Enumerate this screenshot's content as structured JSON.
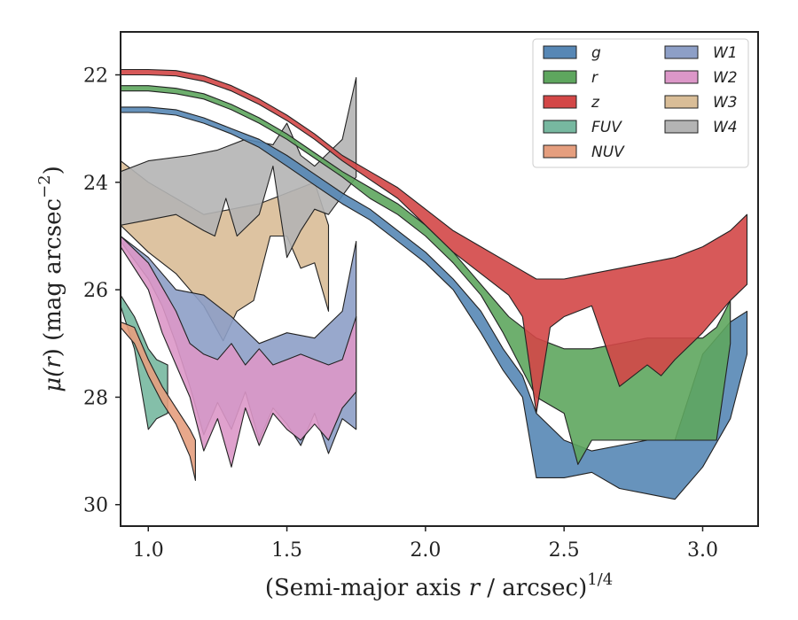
{
  "chart_data": {
    "type": "area",
    "xlabel_main": "(Semi-major axis ",
    "xlabel_var": "r",
    "xlabel_rest": " / arcsec)",
    "xlabel_sup": "1/4",
    "ylabel_pre": "μ(",
    "ylabel_var": "r",
    "ylabel_post": ") (mag arcsec",
    "ylabel_sup": "−2",
    "ylabel_close": ")",
    "xlim": [
      0.9,
      3.2
    ],
    "ylim": [
      30.4,
      21.2
    ],
    "y_inverted": true,
    "xticks": [
      {
        "v": 1.0,
        "label": "1.0"
      },
      {
        "v": 1.5,
        "label": "1.5"
      },
      {
        "v": 2.0,
        "label": "2.0"
      },
      {
        "v": 2.5,
        "label": "2.5"
      },
      {
        "v": 3.0,
        "label": "3.0"
      }
    ],
    "yticks": [
      {
        "v": 22,
        "label": "22"
      },
      {
        "v": 24,
        "label": "24"
      },
      {
        "v": 26,
        "label": "26"
      },
      {
        "v": 28,
        "label": "28"
      },
      {
        "v": 30,
        "label": "30"
      }
    ],
    "legend_position": "top-right",
    "legend_columns": 2,
    "series": [
      {
        "name": "W3",
        "color": "#d9bd97",
        "upper": [
          [
            0.9,
            23.6
          ],
          [
            1.0,
            24.0
          ],
          [
            1.1,
            24.3
          ],
          [
            1.2,
            24.6
          ],
          [
            1.3,
            24.5
          ],
          [
            1.4,
            24.4
          ],
          [
            1.5,
            24.2
          ],
          [
            1.6,
            24.0
          ],
          [
            1.65,
            24.8
          ]
        ],
        "lower": [
          [
            0.9,
            24.8
          ],
          [
            1.0,
            25.3
          ],
          [
            1.1,
            25.7
          ],
          [
            1.2,
            26.3
          ],
          [
            1.27,
            26.95
          ],
          [
            1.32,
            26.4
          ],
          [
            1.38,
            26.2
          ],
          [
            1.44,
            25.0
          ],
          [
            1.5,
            25.0
          ],
          [
            1.55,
            25.6
          ],
          [
            1.6,
            25.5
          ],
          [
            1.65,
            26.4
          ]
        ]
      },
      {
        "name": "W4",
        "color": "#b4b4b4",
        "upper": [
          [
            0.9,
            23.8
          ],
          [
            1.0,
            23.6
          ],
          [
            1.15,
            23.5
          ],
          [
            1.25,
            23.4
          ],
          [
            1.35,
            23.2
          ],
          [
            1.45,
            23.3
          ],
          [
            1.5,
            22.9
          ],
          [
            1.55,
            23.5
          ],
          [
            1.6,
            23.7
          ],
          [
            1.7,
            23.2
          ],
          [
            1.75,
            22.05
          ]
        ],
        "lower": [
          [
            0.9,
            24.8
          ],
          [
            1.0,
            24.7
          ],
          [
            1.1,
            24.6
          ],
          [
            1.2,
            24.9
          ],
          [
            1.24,
            25.0
          ],
          [
            1.28,
            24.3
          ],
          [
            1.32,
            25.0
          ],
          [
            1.4,
            24.6
          ],
          [
            1.45,
            23.7
          ],
          [
            1.5,
            25.4
          ],
          [
            1.55,
            24.9
          ],
          [
            1.6,
            24.5
          ],
          [
            1.65,
            24.6
          ],
          [
            1.75,
            23.9
          ]
        ]
      },
      {
        "name": "W1",
        "color": "#8d9fc7",
        "upper": [
          [
            0.9,
            25.0
          ],
          [
            1.0,
            25.4
          ],
          [
            1.1,
            26.0
          ],
          [
            1.2,
            26.1
          ],
          [
            1.3,
            26.5
          ],
          [
            1.4,
            27.0
          ],
          [
            1.5,
            26.8
          ],
          [
            1.6,
            26.9
          ],
          [
            1.7,
            26.4
          ],
          [
            1.75,
            25.1
          ]
        ],
        "lower": [
          [
            0.9,
            25.1
          ],
          [
            1.0,
            25.8
          ],
          [
            1.05,
            26.3
          ],
          [
            1.1,
            27.0
          ],
          [
            1.15,
            27.8
          ],
          [
            1.2,
            28.7
          ],
          [
            1.25,
            28.1
          ],
          [
            1.3,
            28.6
          ],
          [
            1.35,
            27.9
          ],
          [
            1.4,
            28.8
          ],
          [
            1.45,
            28.2
          ],
          [
            1.5,
            28.5
          ],
          [
            1.55,
            28.9
          ],
          [
            1.6,
            28.3
          ],
          [
            1.65,
            29.05
          ],
          [
            1.7,
            28.4
          ],
          [
            1.75,
            28.6
          ]
        ]
      },
      {
        "name": "W2",
        "color": "#dc97c8",
        "upper": [
          [
            0.9,
            25.0
          ],
          [
            1.0,
            25.5
          ],
          [
            1.1,
            26.4
          ],
          [
            1.15,
            27.0
          ],
          [
            1.2,
            27.2
          ],
          [
            1.25,
            27.3
          ],
          [
            1.3,
            27.0
          ],
          [
            1.35,
            27.4
          ],
          [
            1.4,
            27.1
          ],
          [
            1.45,
            27.4
          ],
          [
            1.5,
            27.3
          ],
          [
            1.55,
            27.2
          ],
          [
            1.6,
            27.3
          ],
          [
            1.65,
            27.4
          ],
          [
            1.7,
            27.3
          ],
          [
            1.75,
            26.5
          ]
        ],
        "lower": [
          [
            0.9,
            25.2
          ],
          [
            1.0,
            26.0
          ],
          [
            1.05,
            26.8
          ],
          [
            1.1,
            27.4
          ],
          [
            1.15,
            28.0
          ],
          [
            1.2,
            29.0
          ],
          [
            1.25,
            28.4
          ],
          [
            1.3,
            29.3
          ],
          [
            1.35,
            28.2
          ],
          [
            1.4,
            28.9
          ],
          [
            1.45,
            28.3
          ],
          [
            1.5,
            28.6
          ],
          [
            1.55,
            28.8
          ],
          [
            1.6,
            28.5
          ],
          [
            1.65,
            28.8
          ],
          [
            1.7,
            28.2
          ],
          [
            1.75,
            27.9
          ]
        ]
      },
      {
        "name": "FUV",
        "color": "#77b8a0",
        "upper": [
          [
            0.9,
            26.1
          ],
          [
            0.95,
            26.5
          ],
          [
            1.0,
            27.1
          ],
          [
            1.03,
            27.3
          ],
          [
            1.07,
            27.4
          ]
        ],
        "lower": [
          [
            0.9,
            26.3
          ],
          [
            0.95,
            27.1
          ],
          [
            1.0,
            28.6
          ],
          [
            1.03,
            28.4
          ],
          [
            1.07,
            28.3
          ]
        ]
      },
      {
        "name": "NUV",
        "color": "#e59e7e",
        "upper": [
          [
            0.9,
            26.6
          ],
          [
            0.95,
            26.7
          ],
          [
            1.0,
            27.3
          ],
          [
            1.05,
            27.8
          ],
          [
            1.1,
            28.2
          ],
          [
            1.15,
            28.6
          ],
          [
            1.17,
            28.8
          ]
        ],
        "lower": [
          [
            0.9,
            26.7
          ],
          [
            0.95,
            27.0
          ],
          [
            1.0,
            27.6
          ],
          [
            1.05,
            28.1
          ],
          [
            1.1,
            28.5
          ],
          [
            1.15,
            29.1
          ],
          [
            1.17,
            29.55
          ]
        ]
      },
      {
        "name": "g",
        "color": "#5787b5",
        "upper": [
          [
            0.9,
            22.6
          ],
          [
            1.0,
            22.6
          ],
          [
            1.1,
            22.65
          ],
          [
            1.2,
            22.8
          ],
          [
            1.3,
            23.0
          ],
          [
            1.4,
            23.2
          ],
          [
            1.5,
            23.5
          ],
          [
            1.6,
            23.85
          ],
          [
            1.7,
            24.2
          ],
          [
            1.8,
            24.5
          ],
          [
            1.9,
            24.9
          ],
          [
            2.0,
            25.3
          ],
          [
            2.1,
            25.8
          ],
          [
            2.2,
            26.4
          ],
          [
            2.28,
            27.1
          ],
          [
            2.35,
            27.6
          ],
          [
            2.4,
            28.3
          ],
          [
            2.5,
            28.8
          ],
          [
            2.6,
            29.0
          ],
          [
            2.7,
            28.9
          ],
          [
            2.8,
            28.8
          ],
          [
            2.9,
            28.8
          ],
          [
            3.0,
            27.2
          ],
          [
            3.1,
            26.6
          ],
          [
            3.16,
            26.4
          ]
        ],
        "lower": [
          [
            0.9,
            22.7
          ],
          [
            1.0,
            22.7
          ],
          [
            1.1,
            22.75
          ],
          [
            1.2,
            22.9
          ],
          [
            1.3,
            23.1
          ],
          [
            1.4,
            23.35
          ],
          [
            1.5,
            23.7
          ],
          [
            1.6,
            24.05
          ],
          [
            1.7,
            24.4
          ],
          [
            1.8,
            24.7
          ],
          [
            1.9,
            25.1
          ],
          [
            2.0,
            25.5
          ],
          [
            2.1,
            26.0
          ],
          [
            2.2,
            26.8
          ],
          [
            2.28,
            27.5
          ],
          [
            2.35,
            28.0
          ],
          [
            2.4,
            29.5
          ],
          [
            2.5,
            29.5
          ],
          [
            2.6,
            29.4
          ],
          [
            2.7,
            29.7
          ],
          [
            2.8,
            29.8
          ],
          [
            2.9,
            29.9
          ],
          [
            3.0,
            29.3
          ],
          [
            3.1,
            28.4
          ],
          [
            3.16,
            27.2
          ]
        ]
      },
      {
        "name": "r",
        "color": "#5ea65e",
        "upper": [
          [
            0.9,
            22.2
          ],
          [
            1.0,
            22.2
          ],
          [
            1.1,
            22.25
          ],
          [
            1.2,
            22.35
          ],
          [
            1.3,
            22.55
          ],
          [
            1.4,
            22.8
          ],
          [
            1.5,
            23.1
          ],
          [
            1.6,
            23.45
          ],
          [
            1.7,
            23.8
          ],
          [
            1.8,
            24.1
          ],
          [
            1.9,
            24.4
          ],
          [
            2.0,
            24.8
          ],
          [
            2.1,
            25.3
          ],
          [
            2.2,
            25.9
          ],
          [
            2.3,
            26.5
          ],
          [
            2.4,
            26.9
          ],
          [
            2.5,
            27.1
          ],
          [
            2.6,
            27.1
          ],
          [
            2.7,
            27.0
          ],
          [
            2.8,
            26.9
          ],
          [
            2.9,
            26.9
          ],
          [
            3.0,
            26.9
          ],
          [
            3.05,
            26.7
          ],
          [
            3.1,
            26.2
          ]
        ],
        "lower": [
          [
            0.9,
            22.3
          ],
          [
            1.0,
            22.3
          ],
          [
            1.1,
            22.35
          ],
          [
            1.2,
            22.45
          ],
          [
            1.3,
            22.65
          ],
          [
            1.4,
            22.9
          ],
          [
            1.5,
            23.2
          ],
          [
            1.6,
            23.55
          ],
          [
            1.7,
            23.9
          ],
          [
            1.8,
            24.3
          ],
          [
            1.9,
            24.6
          ],
          [
            2.0,
            25.0
          ],
          [
            2.1,
            25.5
          ],
          [
            2.2,
            26.1
          ],
          [
            2.28,
            26.8
          ],
          [
            2.35,
            27.5
          ],
          [
            2.4,
            28.0
          ],
          [
            2.5,
            28.3
          ],
          [
            2.55,
            29.25
          ],
          [
            2.6,
            28.8
          ],
          [
            2.7,
            28.8
          ],
          [
            2.8,
            28.8
          ],
          [
            2.9,
            28.8
          ],
          [
            3.0,
            28.8
          ],
          [
            3.05,
            28.8
          ],
          [
            3.1,
            27.0
          ]
        ]
      },
      {
        "name": "z",
        "color": "#d34747",
        "upper": [
          [
            0.9,
            21.9
          ],
          [
            1.0,
            21.9
          ],
          [
            1.1,
            21.92
          ],
          [
            1.2,
            22.02
          ],
          [
            1.3,
            22.2
          ],
          [
            1.4,
            22.45
          ],
          [
            1.5,
            22.75
          ],
          [
            1.6,
            23.1
          ],
          [
            1.7,
            23.5
          ],
          [
            1.8,
            23.8
          ],
          [
            1.9,
            24.1
          ],
          [
            2.0,
            24.5
          ],
          [
            2.1,
            24.9
          ],
          [
            2.2,
            25.2
          ],
          [
            2.3,
            25.5
          ],
          [
            2.4,
            25.8
          ],
          [
            2.5,
            25.8
          ],
          [
            2.6,
            25.7
          ],
          [
            2.7,
            25.6
          ],
          [
            2.8,
            25.5
          ],
          [
            2.9,
            25.4
          ],
          [
            3.0,
            25.2
          ],
          [
            3.1,
            24.9
          ],
          [
            3.16,
            24.6
          ]
        ],
        "lower": [
          [
            0.9,
            22.0
          ],
          [
            1.0,
            22.0
          ],
          [
            1.1,
            22.02
          ],
          [
            1.2,
            22.12
          ],
          [
            1.3,
            22.3
          ],
          [
            1.4,
            22.55
          ],
          [
            1.5,
            22.85
          ],
          [
            1.6,
            23.2
          ],
          [
            1.7,
            23.6
          ],
          [
            1.8,
            23.95
          ],
          [
            1.9,
            24.3
          ],
          [
            2.0,
            24.8
          ],
          [
            2.1,
            25.3
          ],
          [
            2.2,
            25.7
          ],
          [
            2.3,
            26.1
          ],
          [
            2.35,
            26.5
          ],
          [
            2.4,
            28.3
          ],
          [
            2.45,
            26.7
          ],
          [
            2.5,
            26.5
          ],
          [
            2.6,
            26.3
          ],
          [
            2.7,
            27.8
          ],
          [
            2.8,
            27.4
          ],
          [
            2.85,
            27.6
          ],
          [
            2.9,
            27.3
          ],
          [
            3.0,
            26.8
          ],
          [
            3.1,
            26.2
          ],
          [
            3.16,
            25.9
          ]
        ]
      }
    ],
    "legend": [
      {
        "label": "g",
        "color": "#5787b5"
      },
      {
        "label": "r",
        "color": "#5ea65e"
      },
      {
        "label": "z",
        "color": "#d34747"
      },
      {
        "label": "FUV",
        "color": "#77b8a0"
      },
      {
        "label": "NUV",
        "color": "#e59e7e"
      },
      {
        "label": "W1",
        "color": "#8d9fc7"
      },
      {
        "label": "W2",
        "color": "#dc97c8"
      },
      {
        "label": "W3",
        "color": "#d9bd97"
      },
      {
        "label": "W4",
        "color": "#b4b4b4"
      }
    ]
  }
}
